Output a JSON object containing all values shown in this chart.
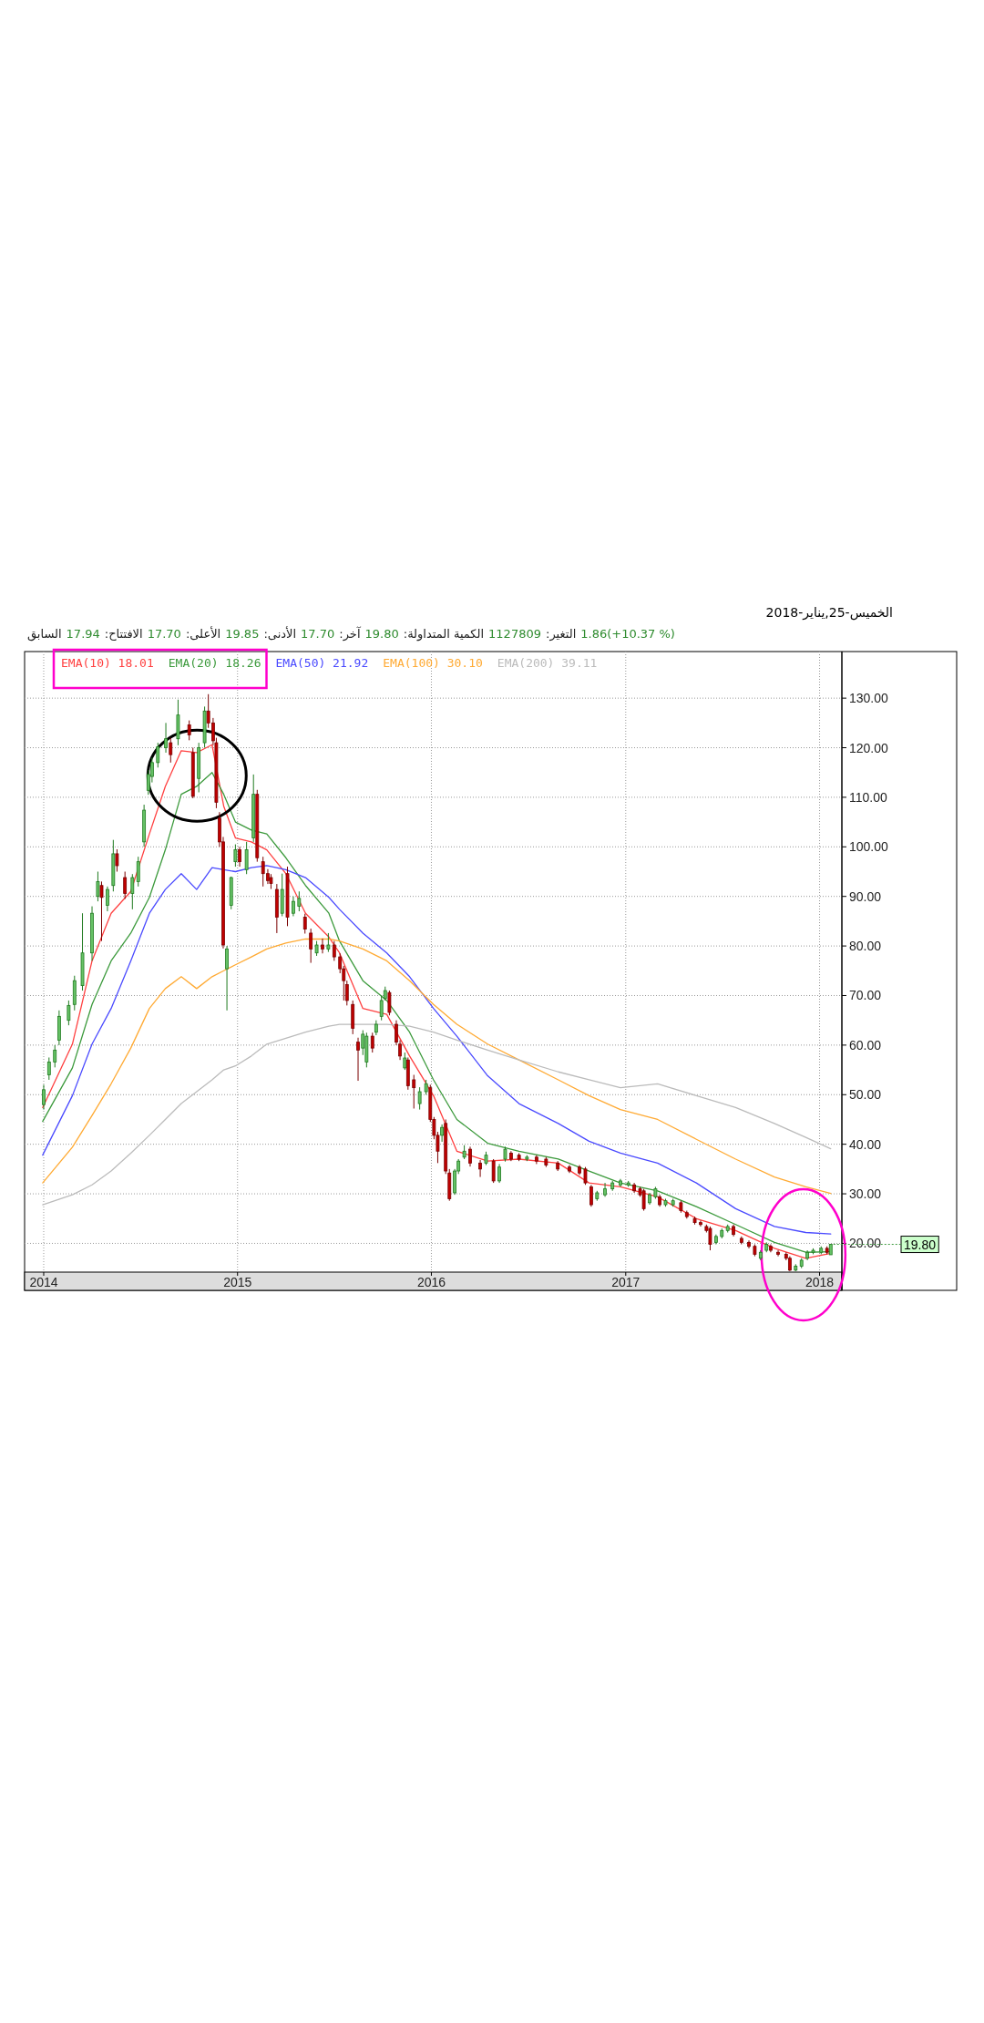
{
  "chart_data": {
    "type": "candlestick",
    "title": "الخميس-25,يناير-2018",
    "annotations": [
      "السابق",
      "17.94",
      ":الافتتاح",
      "17.70",
      ":الأعلى",
      "19.85",
      ":الأدنى",
      "17.70",
      ":آخر",
      "19.80",
      ":الكمية المتداولة",
      "1127809",
      ":التغير",
      "1.86(+10.37 %)",
      {
        "text": "19.80",
        "x": "2018-01-22",
        "y": 19.8
      }
    ],
    "x": [
      "2014-01-01",
      "2014-01-11",
      "2014-01-22",
      "2014-01-30",
      "2014-02-17",
      "2014-02-28",
      "2014-03-15",
      "2014-04-02",
      "2014-04-13",
      "2014-04-20",
      "2014-05-01",
      "2014-05-12",
      "2014-05-19",
      "2014-06-03",
      "2014-06-17",
      "2014-06-28",
      "2014-07-09",
      "2014-07-17",
      "2014-07-24",
      "2014-08-04",
      "2014-08-19",
      "2014-08-28",
      "2014-09-11",
      "2014-10-02",
      "2014-10-09",
      "2014-10-20",
      "2014-10-31",
      "2014-11-07",
      "2014-11-16",
      "2014-11-22",
      "2014-11-28",
      "2014-12-05",
      "2014-12-12",
      "2014-12-20",
      "2014-12-28",
      "2015-01-05",
      "2015-01-18",
      "2015-01-31",
      "2015-02-07",
      "2015-02-18",
      "2015-02-27",
      "2015-03-05",
      "2015-03-16",
      "2015-03-26",
      "2015-04-05",
      "2015-04-16",
      "2015-04-27",
      "2015-05-08",
      "2015-05-19",
      "2015-05-30",
      "2015-06-10",
      "2015-06-21",
      "2015-07-02",
      "2015-07-13",
      "2015-07-20",
      "2015-07-26",
      "2015-08-06",
      "2015-08-16",
      "2015-08-25",
      "2015-09-01",
      "2015-09-12",
      "2015-09-19",
      "2015-09-29",
      "2015-10-06",
      "2015-10-14",
      "2015-10-27",
      "2015-11-03",
      "2015-11-12",
      "2015-11-18",
      "2015-11-29",
      "2015-12-10",
      "2015-12-22",
      "2015-12-30",
      "2016-01-06",
      "2016-01-13",
      "2016-01-21",
      "2016-01-28",
      "2016-02-04",
      "2016-02-14",
      "2016-02-21",
      "2016-03-03",
      "2016-03-14",
      "2016-04-02",
      "2016-04-13",
      "2016-04-27",
      "2016-05-08",
      "2016-05-19",
      "2016-05-30",
      "2016-06-14",
      "2016-06-29",
      "2016-07-17",
      "2016-08-04",
      "2016-08-26",
      "2016-09-17",
      "2016-10-06",
      "2016-10-17",
      "2016-10-28",
      "2016-11-08",
      "2016-11-23",
      "2016-12-07",
      "2016-12-22",
      "2017-01-06",
      "2017-01-17",
      "2017-01-28",
      "2017-02-04",
      "2017-02-15",
      "2017-02-26",
      "2017-03-06",
      "2017-03-17",
      "2017-03-31",
      "2017-04-15",
      "2017-04-26",
      "2017-05-11",
      "2017-05-22",
      "2017-06-02",
      "2017-06-09",
      "2017-06-20",
      "2017-07-01",
      "2017-07-12",
      "2017-07-23",
      "2017-08-07",
      "2017-08-21",
      "2017-09-01",
      "2017-09-12",
      "2017-09-23",
      "2017-10-01",
      "2017-10-15",
      "2017-10-30",
      "2017-11-06",
      "2017-11-17",
      "2017-11-28",
      "2017-12-09",
      "2017-12-20",
      "2018-01-04",
      "2018-01-15",
      "2018-01-22"
    ],
    "ohlc": [
      [
        48,
        52,
        47,
        51
      ],
      [
        54,
        57.5,
        53,
        56.6
      ],
      [
        56.6,
        60,
        55.5,
        59
      ],
      [
        61,
        67,
        60,
        65.8
      ],
      [
        65,
        69,
        64,
        68
      ],
      [
        68.2,
        74,
        67,
        73
      ],
      [
        72,
        86.6,
        71,
        78.6
      ],
      [
        78.6,
        88,
        77,
        86.6
      ],
      [
        90,
        95,
        89,
        93
      ],
      [
        92.2,
        93,
        81,
        89.8
      ],
      [
        88.2,
        92,
        87,
        91.4
      ],
      [
        92.2,
        101.4,
        91,
        98.6
      ],
      [
        98.6,
        99.5,
        95,
        96.2
      ],
      [
        93.8,
        95,
        89.5,
        90.6
      ],
      [
        90.6,
        94.5,
        87.4,
        93.8
      ],
      [
        93,
        98,
        92,
        97
      ],
      [
        101,
        108.5,
        100,
        107.4
      ],
      [
        111.4,
        115.5,
        110.5,
        114.6
      ],
      [
        114.2,
        118,
        113,
        117
      ],
      [
        117,
        121,
        116,
        120.2
      ],
      [
        120,
        125,
        119,
        121.8
      ],
      [
        121,
        122,
        117,
        118.6
      ],
      [
        121.8,
        129.7,
        120.5,
        126.6
      ],
      [
        124.6,
        125.5,
        121.5,
        122.6
      ],
      [
        119,
        120,
        109.8,
        110.2
      ],
      [
        113.8,
        121,
        111,
        120
      ],
      [
        121,
        128.3,
        120,
        127.4
      ],
      [
        127.4,
        130.8,
        124,
        125
      ],
      [
        125,
        126,
        120.5,
        121.4
      ],
      [
        121,
        122,
        107.8,
        109
      ],
      [
        105.8,
        107,
        100,
        101
      ],
      [
        101,
        102,
        79.5,
        80.2
      ],
      [
        75.4,
        80,
        67,
        79.4
      ],
      [
        88.2,
        94,
        87.4,
        93.8
      ],
      [
        97,
        100.5,
        96,
        99.4
      ],
      [
        99.4,
        100,
        96,
        97
      ],
      [
        95.4,
        101,
        94.5,
        99.4
      ],
      [
        101.8,
        114.6,
        101,
        110.6
      ],
      [
        110.6,
        111.5,
        97,
        97.8
      ],
      [
        97,
        98,
        92,
        94.6
      ],
      [
        94.6,
        95.5,
        92.5,
        93.2
      ],
      [
        93.8,
        94.5,
        91.5,
        92.6
      ],
      [
        91.4,
        92.5,
        82.6,
        85.8
      ],
      [
        86.6,
        94.6,
        86,
        91.4
      ],
      [
        94.6,
        96,
        84,
        85.8
      ],
      [
        86.6,
        90,
        86,
        89
      ],
      [
        88,
        91,
        87,
        89.6
      ],
      [
        85.8,
        86.5,
        82.5,
        83.4
      ],
      [
        82.6,
        83.5,
        76.6,
        79.4
      ],
      [
        78.6,
        81,
        78,
        80.2
      ],
      [
        80.2,
        81.5,
        78.5,
        79.4
      ],
      [
        79.4,
        82.6,
        78.8,
        80.2
      ],
      [
        80.2,
        81,
        77,
        77.8
      ],
      [
        77.8,
        78.5,
        74.5,
        75.4
      ],
      [
        75.4,
        76,
        69,
        73
      ],
      [
        72.2,
        73,
        68,
        69
      ],
      [
        68.2,
        69,
        62.2,
        63.4
      ],
      [
        60.6,
        61.5,
        52.8,
        59
      ],
      [
        59.4,
        63,
        58,
        62.2
      ],
      [
        56.6,
        62.5,
        55.5,
        61.8
      ],
      [
        61.8,
        62.5,
        58.5,
        59.4
      ],
      [
        62.6,
        65,
        62,
        64.2
      ],
      [
        65.8,
        70,
        65,
        69
      ],
      [
        69.4,
        71.8,
        69,
        71
      ],
      [
        70.6,
        71,
        66,
        66.6
      ],
      [
        64.2,
        65,
        60,
        60.6
      ],
      [
        60.2,
        61,
        57,
        57.8
      ],
      [
        55.4,
        58.5,
        55,
        57.4
      ],
      [
        57,
        57.5,
        51,
        51.8
      ],
      [
        53,
        54,
        47.2,
        51.4
      ],
      [
        48.2,
        51.5,
        47,
        50.6
      ],
      [
        50.6,
        53,
        50,
        52.2
      ],
      [
        51.4,
        52,
        44.5,
        45
      ],
      [
        45,
        45.5,
        41,
        41.8
      ],
      [
        41.8,
        42.5,
        36.2,
        38.6
      ],
      [
        41.8,
        44,
        40.5,
        43.4
      ],
      [
        44.2,
        45,
        34,
        34.6
      ],
      [
        34.2,
        35,
        28.6,
        29
      ],
      [
        30.2,
        35,
        29.8,
        34.6
      ],
      [
        34.6,
        37,
        34,
        36.6
      ],
      [
        37.4,
        39.8,
        37,
        38.6
      ],
      [
        39,
        39.5,
        35.5,
        36.2
      ],
      [
        36.2,
        36.8,
        33.4,
        35
      ],
      [
        36.2,
        38.5,
        35.8,
        37.8
      ],
      [
        36.6,
        37,
        32.2,
        32.6
      ],
      [
        32.6,
        36,
        32.2,
        35.4
      ],
      [
        37,
        39.5,
        36.5,
        39
      ],
      [
        38.2,
        38.6,
        36.6,
        37
      ],
      [
        37.8,
        38.2,
        36.6,
        37
      ],
      [
        37,
        37.8,
        36.6,
        37.4
      ],
      [
        37.4,
        37.8,
        36,
        36.6
      ],
      [
        37,
        37.4,
        35.4,
        35.8
      ],
      [
        36.2,
        36.6,
        34.6,
        35
      ],
      [
        35.4,
        35.8,
        34.2,
        34.6
      ],
      [
        35.4,
        35.8,
        33.8,
        34.2
      ],
      [
        35,
        35.4,
        31.8,
        32.2
      ],
      [
        31.4,
        31.8,
        27.4,
        27.8
      ],
      [
        29,
        30.6,
        28.6,
        30.2
      ],
      [
        29.8,
        32.2,
        29.4,
        31
      ],
      [
        31,
        32.6,
        30.6,
        32.2
      ],
      [
        31.8,
        33,
        31.4,
        32.6
      ],
      [
        31.8,
        32.6,
        31.4,
        32.2
      ],
      [
        31.8,
        32.2,
        30.2,
        30.6
      ],
      [
        31,
        31.4,
        29.4,
        29.8
      ],
      [
        30.6,
        31,
        26.6,
        27
      ],
      [
        28.2,
        30.2,
        27.8,
        29.8
      ],
      [
        29.4,
        31.4,
        29,
        31
      ],
      [
        29.4,
        29.8,
        27.4,
        27.8
      ],
      [
        27.8,
        29,
        27.4,
        28.6
      ],
      [
        27.8,
        29,
        27.4,
        28.6
      ],
      [
        28.2,
        28.6,
        26.2,
        26.6
      ],
      [
        26.2,
        26.6,
        25,
        25.4
      ],
      [
        25,
        25.4,
        23.8,
        24.2
      ],
      [
        24.2,
        24.6,
        23.4,
        23.8
      ],
      [
        23.4,
        23.8,
        22.2,
        22.6
      ],
      [
        23,
        23.4,
        18.6,
        19.8
      ],
      [
        20.2,
        21.8,
        19.8,
        21.4
      ],
      [
        21.4,
        23,
        21,
        22.6
      ],
      [
        22.6,
        23.8,
        22.2,
        23.4
      ],
      [
        23.4,
        23.8,
        21.4,
        21.8
      ],
      [
        21,
        21.4,
        19.8,
        20.2
      ],
      [
        20.2,
        20.6,
        19,
        19.4
      ],
      [
        19.4,
        19.8,
        17.4,
        17.8
      ],
      [
        17,
        18.6,
        16.6,
        18.2
      ],
      [
        18.6,
        20.2,
        18.2,
        19.8
      ],
      [
        19.4,
        19.8,
        18.2,
        18.6
      ],
      [
        18.2,
        18.6,
        17.4,
        17.8
      ],
      [
        17.8,
        18.2,
        16.6,
        17
      ],
      [
        17,
        17.4,
        14.4,
        14.6
      ],
      [
        14.6,
        15.8,
        14.4,
        15.4
      ],
      [
        15.4,
        17,
        15,
        16.6
      ],
      [
        17,
        18.6,
        16.6,
        18.2
      ],
      [
        18.2,
        19,
        17.8,
        18.6
      ],
      [
        18.2,
        19.4,
        17.8,
        19
      ],
      [
        19,
        19.4,
        17.8,
        18.2
      ],
      [
        17.7,
        19.85,
        17.7,
        19.8
      ]
    ],
    "series": [
      {
        "name": "EMA(10)  18.01",
        "type": "line",
        "color": "#ff4040",
        "x": [
          "2013-12-30",
          "2014-02-24",
          "2014-04-02",
          "2014-05-08",
          "2014-06-14",
          "2014-07-19",
          "2014-08-18",
          "2014-09-17",
          "2014-10-16",
          "2014-11-14",
          "2014-12-06",
          "2014-12-28",
          "2015-01-27",
          "2015-02-25",
          "2015-04-02",
          "2015-05-09",
          "2015-06-22",
          "2015-07-12",
          "2015-08-25",
          "2015-10-09",
          "2015-11-21",
          "2016-01-05",
          "2016-02-18",
          "2016-04-16",
          "2016-06-14",
          "2016-08-27",
          "2016-10-24",
          "2016-12-22",
          "2017-03-02",
          "2017-05-14",
          "2017-07-27",
          "2017-10-08",
          "2017-12-06",
          "2018-01-22"
        ],
        "values": [
          47.4,
          60.2,
          77,
          86.6,
          91,
          102.6,
          112.2,
          119.4,
          119,
          120.6,
          108.2,
          101.8,
          101,
          99.4,
          94.6,
          86.6,
          81.8,
          78.6,
          67.4,
          66.2,
          57.8,
          49.8,
          38.6,
          36.6,
          37,
          36.2,
          32.2,
          31.4,
          29.4,
          25,
          22.6,
          19,
          17,
          18.0
        ]
      },
      {
        "name": "EMA(20)  18.26",
        "type": "line",
        "color": "#3c9a3c",
        "x": [
          "2013-12-30",
          "2014-02-24",
          "2014-04-02",
          "2014-05-08",
          "2014-06-14",
          "2014-07-19",
          "2014-08-18",
          "2014-09-17",
          "2014-10-16",
          "2014-11-14",
          "2014-12-06",
          "2014-12-28",
          "2015-01-27",
          "2015-02-25",
          "2015-04-02",
          "2015-05-09",
          "2015-06-22",
          "2015-07-12",
          "2015-08-25",
          "2015-10-09",
          "2015-11-21",
          "2016-01-05",
          "2016-02-18",
          "2016-04-16",
          "2016-06-14",
          "2016-08-27",
          "2016-10-24",
          "2016-12-22",
          "2017-03-02",
          "2017-05-14",
          "2017-07-27",
          "2017-10-08",
          "2017-12-06",
          "2018-01-22"
        ],
        "values": [
          44.6,
          55.4,
          68.2,
          77,
          82.6,
          89.8,
          99.4,
          110.6,
          112.2,
          115,
          110.6,
          105,
          103.4,
          102.6,
          97.8,
          92.2,
          86.6,
          81,
          73,
          69,
          62.6,
          53,
          45,
          40.2,
          38.6,
          37,
          34.6,
          32.2,
          30.6,
          27.4,
          23.8,
          20.2,
          18.2,
          18.3
        ]
      },
      {
        "name": "EMA(50)  21.92",
        "type": "line",
        "color": "#4a4aff",
        "x": [
          "2013-12-30",
          "2014-02-24",
          "2014-04-02",
          "2014-05-08",
          "2014-06-14",
          "2014-07-19",
          "2014-08-18",
          "2014-09-17",
          "2014-10-16",
          "2014-11-14",
          "2014-12-06",
          "2014-12-28",
          "2015-01-27",
          "2015-02-25",
          "2015-04-02",
          "2015-05-09",
          "2015-06-22",
          "2015-07-12",
          "2015-08-25",
          "2015-10-09",
          "2015-11-21",
          "2016-01-05",
          "2016-02-18",
          "2016-04-16",
          "2016-06-14",
          "2016-08-27",
          "2016-10-24",
          "2016-12-22",
          "2017-03-02",
          "2017-05-14",
          "2017-07-27",
          "2017-10-08",
          "2017-12-06",
          "2018-01-22"
        ],
        "values": [
          37.8,
          49.8,
          60.2,
          67.4,
          77,
          86.6,
          91.4,
          94.6,
          91.4,
          95.8,
          95.4,
          95,
          95.8,
          96.2,
          95.4,
          93.8,
          89.8,
          87.4,
          82.6,
          78.6,
          73.8,
          67.4,
          61.8,
          53.8,
          48.2,
          44.2,
          40.6,
          38.2,
          36.2,
          32.2,
          27,
          23.4,
          22.2,
          21.9
        ]
      },
      {
        "name": "EMA(100)  30.10",
        "type": "line",
        "color": "#ffaa33",
        "x": [
          "2013-12-30",
          "2014-02-24",
          "2014-04-02",
          "2014-05-08",
          "2014-06-14",
          "2014-07-19",
          "2014-08-18",
          "2014-09-17",
          "2014-10-16",
          "2014-11-14",
          "2014-12-06",
          "2014-12-28",
          "2015-01-27",
          "2015-02-25",
          "2015-04-02",
          "2015-05-09",
          "2015-06-22",
          "2015-07-12",
          "2015-08-25",
          "2015-10-09",
          "2015-11-21",
          "2016-01-05",
          "2016-02-18",
          "2016-04-16",
          "2016-06-14",
          "2016-08-27",
          "2016-10-24",
          "2016-12-22",
          "2017-03-02",
          "2017-05-14",
          "2017-07-27",
          "2017-10-08",
          "2017-12-06",
          "2018-01-22"
        ],
        "values": [
          32.2,
          39.4,
          45.8,
          52.2,
          59.4,
          67.4,
          71.4,
          73.8,
          71.4,
          73.8,
          75,
          76.2,
          77.8,
          79.4,
          80.6,
          81.4,
          81.4,
          81,
          79.4,
          77,
          73,
          68.2,
          64.2,
          60.2,
          57,
          53,
          49.8,
          47,
          45,
          41,
          37,
          33.4,
          31.4,
          30.1
        ]
      },
      {
        "name": "EMA(200)  39.11",
        "type": "line",
        "color": "#bbbbbb",
        "x": [
          "2013-12-30",
          "2014-02-24",
          "2014-04-02",
          "2014-05-08",
          "2014-06-14",
          "2014-07-19",
          "2014-08-18",
          "2014-09-17",
          "2014-10-16",
          "2014-11-14",
          "2014-12-06",
          "2014-12-28",
          "2015-01-27",
          "2015-02-25",
          "2015-04-02",
          "2015-05-09",
          "2015-06-22",
          "2015-07-12",
          "2015-08-25",
          "2015-10-09",
          "2015-11-21",
          "2016-01-05",
          "2016-02-18",
          "2016-04-16",
          "2016-06-14",
          "2016-08-27",
          "2016-10-24",
          "2016-12-22",
          "2017-03-02",
          "2017-05-14",
          "2017-07-27",
          "2017-10-08",
          "2017-12-06",
          "2018-01-22"
        ],
        "values": [
          27.8,
          29.8,
          31.8,
          34.6,
          38.2,
          41.8,
          45,
          48.2,
          50.6,
          53,
          55,
          55.8,
          57.8,
          60.2,
          61.4,
          62.6,
          63.8,
          64.2,
          64.2,
          64.2,
          63.8,
          62.6,
          61,
          59,
          57,
          54.6,
          53,
          51.4,
          52.2,
          49.8,
          47.4,
          44.2,
          41.4,
          39.1
        ]
      }
    ],
    "xlim": [
      "2013-11-26",
      "2018-02-12"
    ],
    "xticks": [
      {
        "value": "2014-01-01",
        "label": "2014"
      },
      {
        "value": "2015-01-01",
        "label": "2015"
      },
      {
        "value": "2016-01-01",
        "label": "2016"
      },
      {
        "value": "2017-01-01",
        "label": "2017"
      },
      {
        "value": "2018-01-01",
        "label": "2018"
      }
    ],
    "ylim": [
      14.2,
      139.4
    ],
    "yticks": [
      {
        "value": 20,
        "label": "20.00"
      },
      {
        "value": 30,
        "label": "30.00"
      },
      {
        "value": 40,
        "label": "40.00"
      },
      {
        "value": 50,
        "label": "50.00"
      },
      {
        "value": 60,
        "label": "60.00"
      },
      {
        "value": 70,
        "label": "70.00"
      },
      {
        "value": 80,
        "label": "80.00"
      },
      {
        "value": 90,
        "label": "90.00"
      },
      {
        "value": 100,
        "label": "100.00"
      },
      {
        "value": 110,
        "label": "110.00"
      },
      {
        "value": 120,
        "label": "120.00"
      },
      {
        "value": 130,
        "label": "130.00"
      }
    ],
    "grid": true
  }
}
